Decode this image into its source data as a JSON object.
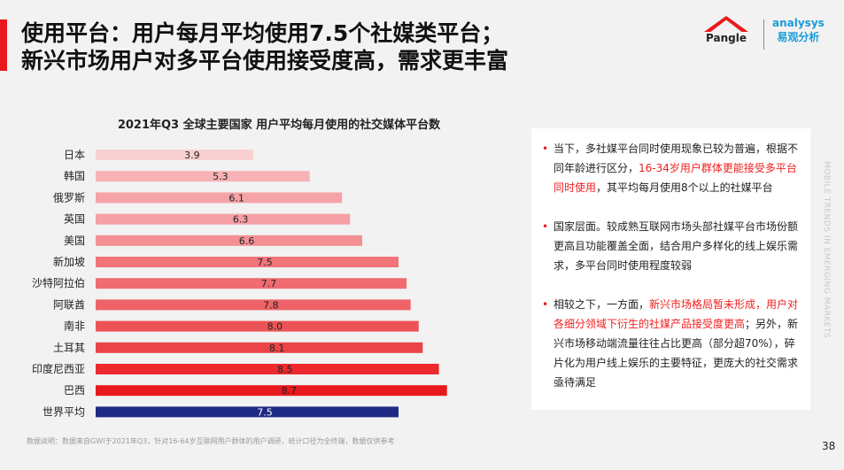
{
  "header": {
    "title_line1": "使用平台：用户每月平均使用7.5个社媒类平台；",
    "title_line2": "新兴市场用户对多平台使用接受度高，需求更丰富"
  },
  "logos": {
    "pangle": "Pangle",
    "analysys_en": "analysys",
    "analysys_cn": "易观分析"
  },
  "chart_data": {
    "type": "bar",
    "orientation": "horizontal",
    "title": "2021年Q3 全球主要国家 用户平均每月使用的社交媒体平台数",
    "categories": [
      "日本",
      "韩国",
      "俄罗斯",
      "英国",
      "美国",
      "新加坡",
      "沙特阿拉伯",
      "阿联酋",
      "南非",
      "土耳其",
      "印度尼西亚",
      "巴西",
      "世界平均"
    ],
    "values": [
      3.9,
      5.3,
      6.1,
      6.3,
      6.6,
      7.5,
      7.7,
      7.8,
      8.0,
      8.1,
      8.5,
      8.7,
      7.5
    ],
    "labels": [
      "3.9",
      "5.3",
      "6.1",
      "6.3",
      "6.6",
      "7.5",
      "7.7",
      "7.8",
      "8.0",
      "8.1",
      "8.5",
      "8.7",
      "7.5"
    ],
    "colors": [
      "#f9d0d2",
      "#f7b2b5",
      "#f5a3a7",
      "#f5a0a4",
      "#f39094",
      "#f07478",
      "#f06c70",
      "#ee6367",
      "#ec5357",
      "#ea4448",
      "#ec2a2e",
      "#e8191d",
      "#1f2a85"
    ],
    "xlim": [
      0,
      10
    ]
  },
  "panel": {
    "bullets": [
      {
        "parts": [
          {
            "t": "当下，多社媒平台同时使用现象已较为普遍，根据不同年龄进行区分，",
            "red": false
          },
          {
            "t": "16-34岁用户群体更能接受多平台同时使用",
            "red": true
          },
          {
            "t": "，其平均每月使用8个以上的社媒平台",
            "red": false
          }
        ]
      },
      {
        "parts": [
          {
            "t": "国家层面。较成熟互联网市场头部社媒平台市场份额更高且功能覆盖全面，结合用户多样化的线上娱乐需求，多平台同时使用程度较弱",
            "red": false
          }
        ]
      },
      {
        "parts": [
          {
            "t": "相较之下，一方面，",
            "red": false
          },
          {
            "t": "新兴市场格局暂未形成，用户对各细分领域下衍生的社媒产品接受度更高",
            "red": true
          },
          {
            "t": "；另外，新兴市场移动端流量往往占比更高（部分超70%），碎片化为用户线上娱乐的主要特征，更庞大的社交需求亟待满足",
            "red": false
          }
        ]
      }
    ]
  },
  "side_text": "MOBILE TRENDS IN EMERGING MARKETS",
  "footnote": "数据说明：数据来自GWI于2021年Q3，针对16-64岁互联网用户群体的用户调研，统计口径为全终端，数据仅供参考",
  "page_number": "38"
}
